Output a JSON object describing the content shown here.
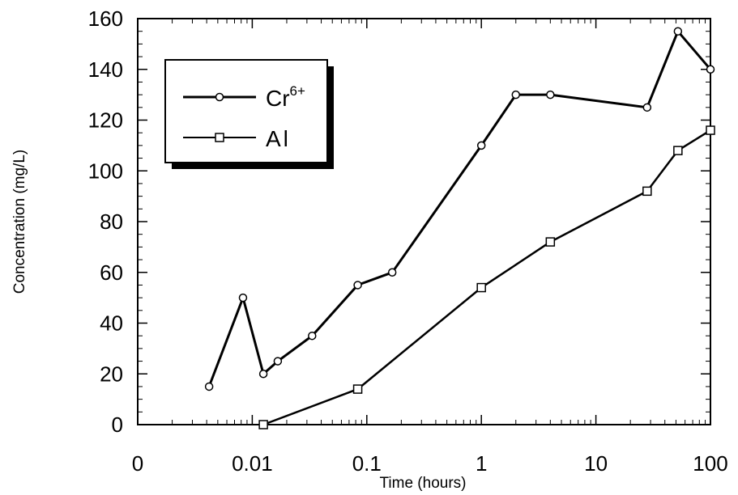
{
  "chart_data": {
    "type": "line",
    "xscale": "log",
    "xlabel": "Time (hours)",
    "ylabel": "Concentration (mg/L)",
    "xlim": [
      0.001,
      100
    ],
    "ylim": [
      0,
      160
    ],
    "x_tick_values": [
      0.001,
      0.01,
      0.1,
      1,
      10,
      100
    ],
    "x_tick_labels": [
      "0",
      "0.01",
      "0.1",
      "1",
      "10",
      "100"
    ],
    "y_tick_values": [
      0,
      20,
      40,
      60,
      80,
      100,
      120,
      140,
      160
    ],
    "y_tick_labels": [
      "0",
      "20",
      "40",
      "60",
      "80",
      "100",
      "120",
      "140",
      "160"
    ],
    "grid": false,
    "legend_position": "top-left",
    "series": [
      {
        "name": "Cr6+",
        "name_base": "Cr",
        "name_sup": "6+",
        "marker": "circle",
        "color": "#000000",
        "x": [
          0.0042,
          0.0083,
          0.0125,
          0.0167,
          0.0333,
          0.0833,
          0.1667,
          1,
          2,
          4,
          28,
          52,
          100
        ],
        "y": [
          15,
          50,
          20,
          25,
          35,
          55,
          60,
          110,
          130,
          130,
          125,
          155,
          140
        ]
      },
      {
        "name": "Al",
        "name_base": "Al",
        "marker": "square",
        "color": "#000000",
        "x": [
          0.0125,
          0.0833,
          1,
          4,
          28,
          52,
          100
        ],
        "y": [
          0,
          14,
          54,
          72,
          92,
          108,
          116
        ]
      }
    ]
  }
}
